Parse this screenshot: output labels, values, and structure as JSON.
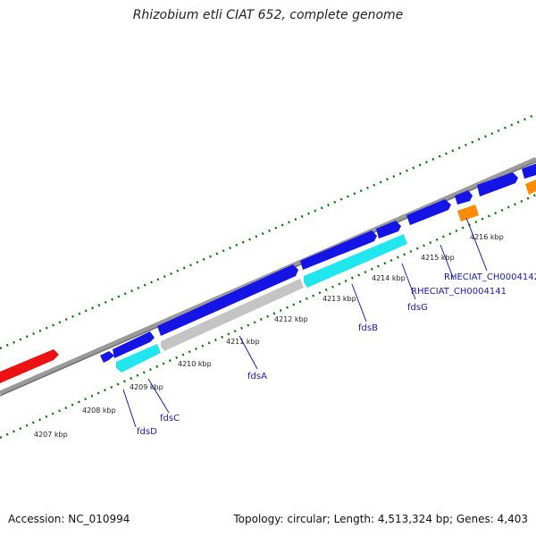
{
  "title": "Rhizobium etli CIAT 652, complete genome",
  "footer": {
    "accession": "Accession: NC_010994",
    "summary": "Topology: circular; Length: 4,513,324 bp; Genes: 4,403"
  },
  "colors": {
    "backbone": "#8a8a8a",
    "forward_cds": "#1414e6",
    "reverse_cds": "#22e6ee",
    "pseudo": "#c4c4c4",
    "rna": "#ff8c00",
    "highlight": "#ee1111",
    "ticks": "#0a7a0a",
    "labels": "#1a1aa8"
  },
  "ticks": [
    "4207 kbp",
    "4208 kbp",
    "4209 kbp",
    "4210 kbp",
    "4211 kbp",
    "4212 kbp",
    "4213 kbp",
    "4214 kbp",
    "4215 kbp",
    "4216 kbp"
  ],
  "gene_labels": [
    "fdsD",
    "fdsC",
    "fdsA",
    "fdsB",
    "fdsG",
    "RHECIAT_CH0004141",
    "RHECIAT_CH0004142"
  ]
}
